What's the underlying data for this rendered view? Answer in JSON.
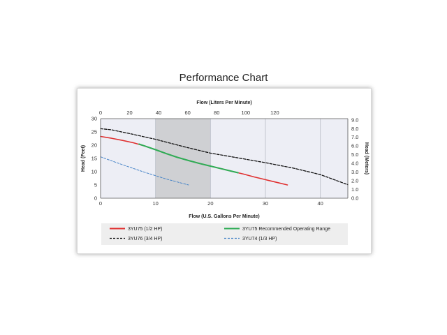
{
  "page": {
    "title": "Performance Chart"
  },
  "chart_data": {
    "type": "line",
    "title": "",
    "xlabel": "Flow (U.S. Gallons Per Minute)",
    "ylabel": "Head (Feet)",
    "x2label": "Flow (Liters Per Minute)",
    "y2label": "Head (Meters)",
    "xlim": [
      0,
      45
    ],
    "ylim": [
      0,
      30
    ],
    "x2lim": [
      0,
      170.34
    ],
    "y2lim": [
      0,
      9.144
    ],
    "x_ticks": [
      0,
      10,
      20,
      30,
      40
    ],
    "y_ticks": [
      0,
      5,
      10,
      15,
      20,
      25,
      30
    ],
    "x2_ticks": [
      0,
      20,
      40,
      60,
      80,
      100,
      120
    ],
    "y2_ticks": [
      "0.0",
      "1.0",
      "2.0",
      "3.0",
      "4.0",
      "5.0",
      "6.0",
      "7.0",
      "8.0",
      "9.0"
    ],
    "grid": "vertical",
    "shaded_band": [
      10,
      20
    ],
    "legend_position": "bottom",
    "series": [
      {
        "name": "3YU75 (1/2 HP)",
        "color": "#e03030",
        "dash": "solid",
        "x": [
          0,
          2,
          4,
          6,
          8,
          10,
          12,
          14,
          16,
          18,
          20,
          22,
          24,
          26,
          28,
          30,
          32,
          34
        ],
        "y": [
          23.3,
          22.6,
          21.8,
          20.9,
          19.7,
          18.3,
          16.8,
          15.4,
          14.2,
          13.1,
          12.1,
          11.1,
          10.1,
          9.1,
          8.0,
          7.0,
          6.0,
          5.0
        ]
      },
      {
        "name": "3YU75 Recommended Operating Range",
        "color": "#2eac55",
        "dash": "solid",
        "x": [
          7,
          8,
          10,
          12,
          14,
          16,
          18,
          20,
          22,
          24,
          25
        ],
        "y": [
          20.4,
          19.7,
          18.3,
          16.8,
          15.4,
          14.2,
          13.1,
          12.1,
          11.1,
          10.1,
          9.6
        ]
      },
      {
        "name": "3YU76 (3/4 HP)",
        "color": "#111111",
        "dash": "dashed",
        "x": [
          0,
          2,
          5,
          10,
          15,
          20,
          25,
          30,
          35,
          40,
          45
        ],
        "y": [
          26.2,
          25.8,
          24.5,
          22.2,
          19.5,
          17.0,
          15.2,
          13.4,
          11.4,
          8.9,
          5.1
        ]
      },
      {
        "name": "3YU74 (1/3 HP)",
        "color": "#4a86c8",
        "dash": "dashed",
        "x": [
          0,
          2,
          4,
          6,
          8,
          10,
          12,
          14,
          16
        ],
        "y": [
          15.6,
          14.1,
          12.6,
          11.2,
          9.8,
          8.5,
          7.2,
          6.1,
          5.0
        ]
      }
    ]
  }
}
